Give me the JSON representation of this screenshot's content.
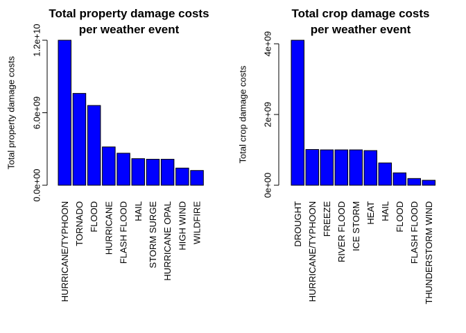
{
  "chart_data": [
    {
      "type": "bar",
      "title_line1": "Total property damage costs",
      "title_line2": "per weather event",
      "ylabel": "Total property damage costs",
      "categories": [
        "HURRICANE/TYPHOON",
        "TORNADO",
        "FLOOD",
        "HURRICANE",
        "FLASH FLOOD",
        "HAIL",
        "STORM SURGE",
        "HURRICANE OPAL",
        "HIGH WIND",
        "WILDFIRE"
      ],
      "values": [
        12000000000,
        7600000000,
        6600000000,
        3170000000,
        2650000000,
        2200000000,
        2150000000,
        2150000000,
        1420000000,
        1220000000
      ],
      "ylim": [
        0,
        12000000000
      ],
      "yticks": [
        0,
        6000000000,
        12000000000
      ],
      "ytick_labels": [
        "0.0e+00",
        "6.0e+09",
        "1.2e+10"
      ],
      "bar_color": "#0000ff"
    },
    {
      "type": "bar",
      "title_line1": "Total crop damage costs",
      "title_line2": "per weather event",
      "ylabel": "Total crop damage costs",
      "categories": [
        "DROUGHT",
        "HURRICANE/TYPHOON",
        "FREEZE",
        "RIVER FLOOD",
        "ICE STORM",
        "HEAT",
        "HAIL",
        "FLOOD",
        "FLASH FLOOD",
        "THUNDERSTORM WIND"
      ],
      "values": [
        4100000000,
        1010000000,
        1000000000,
        1000000000,
        1000000000,
        980000000,
        630000000,
        350000000,
        190000000,
        140000000
      ],
      "ylim": [
        0,
        4100000000
      ],
      "yticks": [
        0,
        2000000000,
        4000000000
      ],
      "ytick_labels": [
        "0e+00",
        "2e+09",
        "4e+09"
      ],
      "bar_color": "#0000ff"
    }
  ]
}
